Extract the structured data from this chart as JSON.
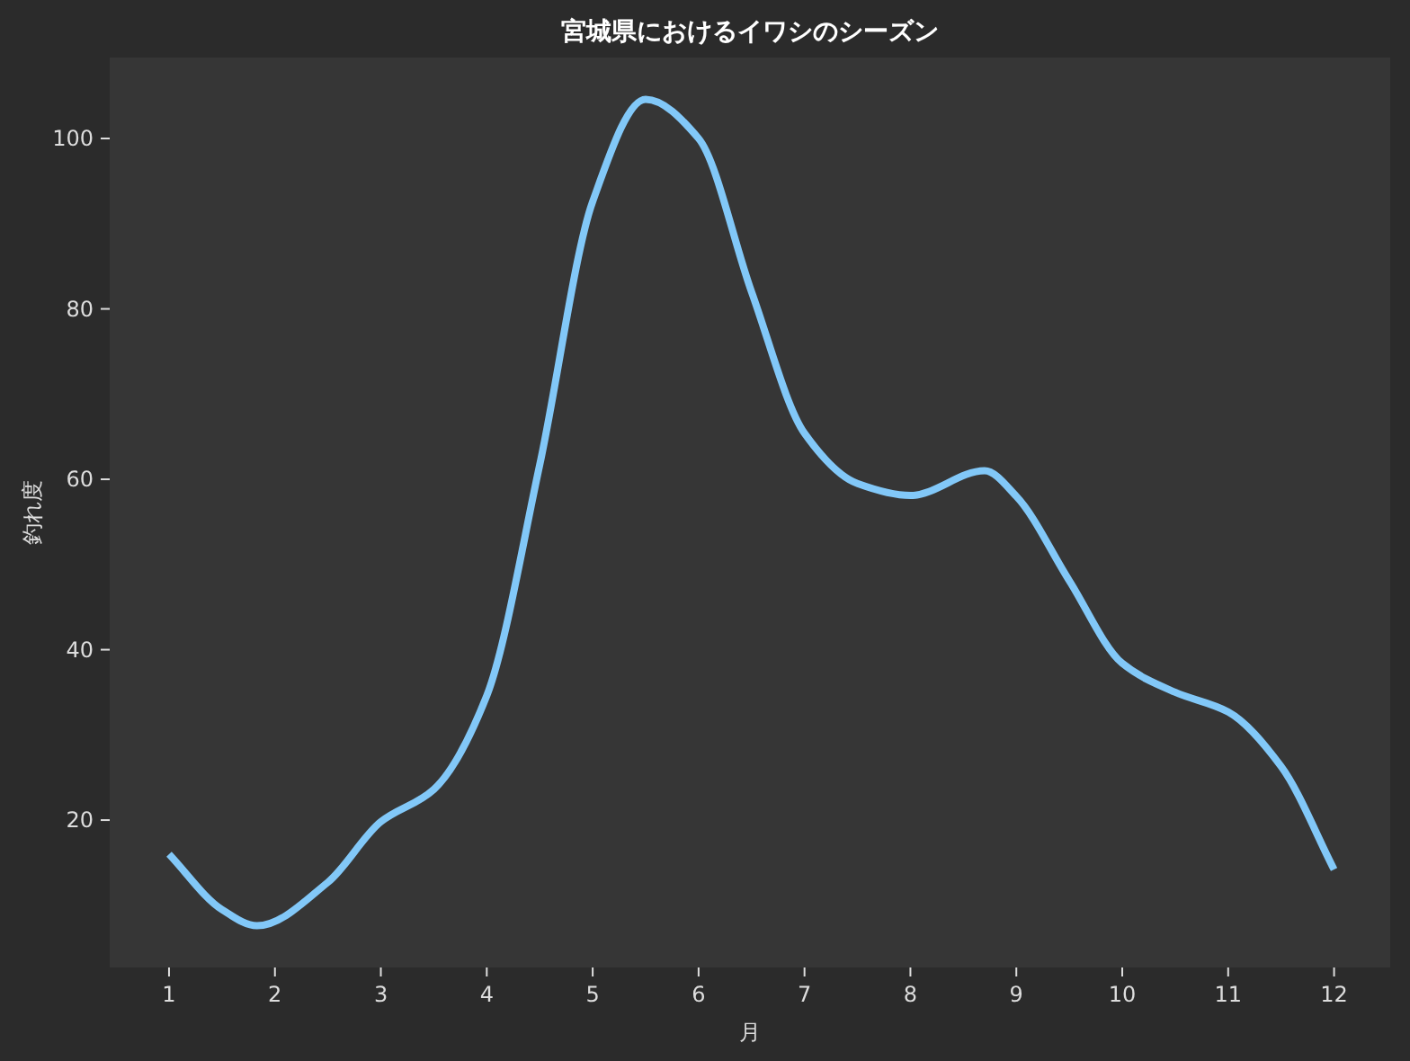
{
  "chart_data": {
    "type": "line",
    "title": "宮城県におけるイワシのシーズン",
    "xlabel": "月",
    "ylabel": "釣れ度",
    "x": [
      1,
      1.5,
      1.83,
      2.5,
      3,
      3.5,
      4,
      4.5,
      5,
      5.5,
      6,
      6.5,
      7,
      7.5,
      8,
      8.7,
      9,
      9.5,
      10,
      10.5,
      11,
      11.5,
      12
    ],
    "series": [
      {
        "color": "#82c8f8",
        "values": [
          16,
          9.5,
          7.6,
          12.7,
          19.8,
          23.6,
          34.6,
          61.7,
          92.6,
          104.6,
          100,
          82,
          65.4,
          59.5,
          58.1,
          61,
          58,
          48.1,
          38.4,
          35,
          32.7,
          26.3,
          14.2
        ]
      }
    ],
    "xlim": [
      0.44,
      12.53
    ],
    "ylim": [
      2.7,
      109.5
    ],
    "xticks": [
      1,
      2,
      3,
      4,
      5,
      6,
      7,
      8,
      9,
      10,
      11,
      12
    ],
    "yticks": [
      20,
      40,
      60,
      80,
      100
    ],
    "grid": false,
    "marker": "none",
    "line_style": "solid"
  }
}
